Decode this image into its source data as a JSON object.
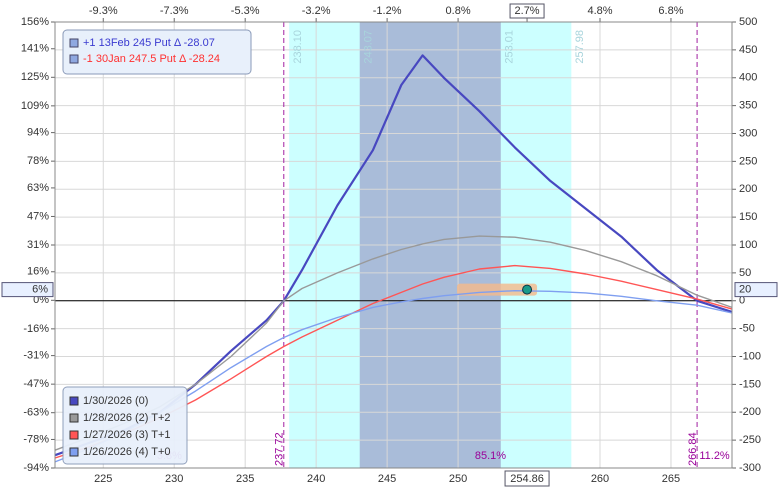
{
  "chart_data": {
    "type": "line",
    "x": [
      221.6,
      224,
      226.5,
      229,
      231.5,
      234,
      236.5,
      237.72,
      239,
      241.5,
      244,
      246,
      247.5,
      249,
      251.5,
      254,
      256.5,
      259,
      261.5,
      264,
      266.84,
      269.3
    ],
    "xlim": [
      221.6,
      269.3
    ],
    "xticks": [
      225,
      230,
      235,
      240,
      245,
      250,
      260,
      265
    ],
    "x2ticks": [
      {
        "value": 225,
        "label": "-9.3%"
      },
      {
        "value": 230,
        "label": "-7.3%"
      },
      {
        "value": 235,
        "label": "-5.3%"
      },
      {
        "value": 240,
        "label": "-3.2%"
      },
      {
        "value": 245,
        "label": "-1.2%"
      },
      {
        "value": 250,
        "label": "0.8%"
      },
      {
        "value": 254.86,
        "label": "2.7%"
      },
      {
        "value": 260,
        "label": "4.8%"
      },
      {
        "value": 265,
        "label": "6.8%"
      }
    ],
    "ylim": [
      -300,
      500
    ],
    "yticks": [
      500,
      450,
      400,
      350,
      300,
      250,
      200,
      150,
      100,
      50,
      0,
      -50,
      -100,
      -150,
      -200,
      -250,
      -300
    ],
    "y2lim": [
      -94,
      156
    ],
    "y2ticks": [
      {
        "value": 156,
        "label": "156%"
      },
      {
        "value": 141,
        "label": "141%"
      },
      {
        "value": 125,
        "label": "125%"
      },
      {
        "value": 109,
        "label": "109%"
      },
      {
        "value": 94,
        "label": "94%"
      },
      {
        "value": 78,
        "label": "78%"
      },
      {
        "value": 63,
        "label": "63%"
      },
      {
        "value": 47,
        "label": "47%"
      },
      {
        "value": 31,
        "label": "31%"
      },
      {
        "value": 16,
        "label": "16%"
      },
      {
        "value": 0,
        "label": "0%"
      },
      {
        "value": -16,
        "label": "-16%"
      },
      {
        "value": -31,
        "label": "-31%"
      },
      {
        "value": -47,
        "label": "-47%"
      },
      {
        "value": -63,
        "label": "-63%"
      },
      {
        "value": -78,
        "label": "-78%"
      },
      {
        "value": -94,
        "label": "-94%"
      }
    ],
    "grid": true,
    "series": [
      {
        "name": "1/30/2026 (0)",
        "color": "#4848c0",
        "values": [
          -277,
          -255,
          -232,
          -200,
          -150,
          -90,
          -35,
          0,
          55,
          171,
          270,
          387,
          440,
          400,
          340,
          275,
          215,
          165,
          115,
          55,
          0,
          -20
        ]
      },
      {
        "name": "1/28/2026 (2) T+2",
        "color": "#999999",
        "values": [
          -268,
          -245,
          -220,
          -190,
          -150,
          -100,
          -40,
          0,
          22,
          50,
          75,
          92,
          102,
          110,
          116,
          114,
          105,
          90,
          70,
          45,
          10,
          -12
        ]
      },
      {
        "name": "1/27/2026 (3) T+1",
        "color": "#ff5555",
        "values": [
          -282,
          -262,
          -238,
          -210,
          -178,
          -140,
          -100,
          -82,
          -65,
          -35,
          -5,
          15,
          30,
          42,
          57,
          63,
          58,
          48,
          35,
          20,
          3,
          -15
        ]
      },
      {
        "name": "1/26/2026 (4) T+0",
        "color": "#7f9ff0",
        "values": [
          -289,
          -265,
          -236,
          -200,
          -162,
          -120,
          -82,
          -66,
          -52,
          -30,
          -12,
          -2,
          4,
          9,
          15,
          18,
          17,
          14,
          8,
          0,
          -8,
          -22
        ]
      }
    ],
    "positions": [
      {
        "text": "+1 13Feb 245 Put Δ  -28.07",
        "color": "#3a3ad0"
      },
      {
        "text": "-1 30Jan 247.5 Put Δ  -28.24",
        "color": "#ff3030"
      }
    ],
    "bands": [
      {
        "from": {
          "value": 238.1,
          "label": "238.10"
        },
        "to": {
          "value": 257.98,
          "label": "257.98"
        },
        "color": "#ccffff"
      },
      {
        "from": {
          "value": 243.07,
          "label": "243.07"
        },
        "to": {
          "value": 253.01,
          "label": "253.01"
        },
        "color": "#a9bcd9"
      }
    ],
    "breakevens": [
      237.72,
      266.84
    ],
    "probabilities": [
      "3.8%",
      "85.1%",
      "11.2%"
    ],
    "current_price": 254.86,
    "current_value": 20,
    "current_value_pct": "6%"
  }
}
